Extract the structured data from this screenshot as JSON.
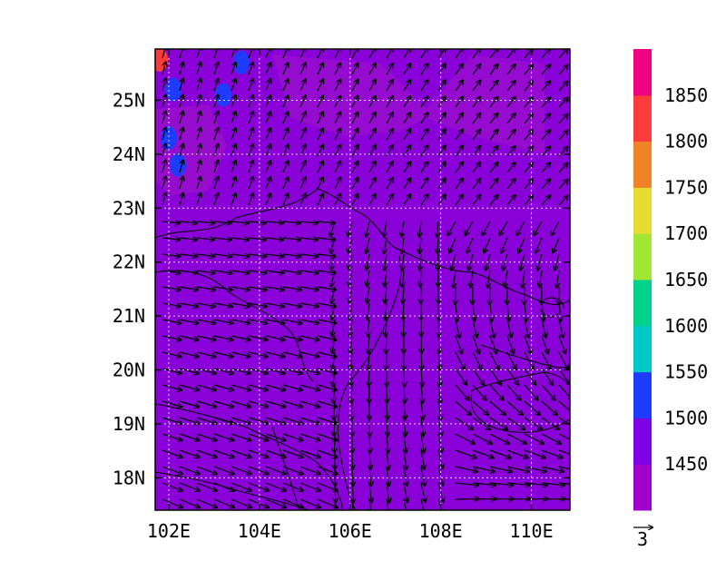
{
  "map": {
    "lon_range": [
      101.7,
      110.85
    ],
    "lat_range": [
      17.4,
      25.95
    ],
    "lon_ticks": [
      {
        "value": 102,
        "label": "102E"
      },
      {
        "value": 104,
        "label": "104E"
      },
      {
        "value": 106,
        "label": "106E"
      },
      {
        "value": 108,
        "label": "108E"
      },
      {
        "value": 110,
        "label": "110E"
      }
    ],
    "lat_ticks": [
      {
        "value": 18,
        "label": "18N"
      },
      {
        "value": 19,
        "label": "19N"
      },
      {
        "value": 20,
        "label": "20N"
      },
      {
        "value": 21,
        "label": "21N"
      },
      {
        "value": 22,
        "label": "22N"
      },
      {
        "value": 23,
        "label": "23N"
      },
      {
        "value": 24,
        "label": "24N"
      },
      {
        "value": 25,
        "label": "25N"
      }
    ],
    "grid": true,
    "background_level_color": "#8a00d8",
    "wind_vectors": "dense arrow field; westerly flow in the south-west, northerly/north-easterly over the Gulf of Tonkin curving into a cyclonic turn in the south-east, southerly in the north",
    "reference_vector_label": "3"
  },
  "colorbar": {
    "levels": [
      {
        "color": "#a000c8",
        "label": ""
      },
      {
        "color": "#8000e6",
        "label": "1450"
      },
      {
        "color": "#1e3cff",
        "label": "1500"
      },
      {
        "color": "#00c8c8",
        "label": "1550"
      },
      {
        "color": "#00d28c",
        "label": "1600"
      },
      {
        "color": "#a0e632",
        "label": "1650"
      },
      {
        "color": "#e6dc32",
        "label": "1700"
      },
      {
        "color": "#f08228",
        "label": "1750"
      },
      {
        "color": "#fa3c3c",
        "label": "1800"
      },
      {
        "color": "#f00082",
        "label": "1850"
      }
    ]
  },
  "high_patches": [
    {
      "lon": 102.1,
      "lat": 25.2,
      "color": "#1e3cff"
    },
    {
      "lon": 102.0,
      "lat": 24.3,
      "color": "#1e3cff"
    },
    {
      "lon": 102.2,
      "lat": 23.8,
      "color": "#1e3cff"
    },
    {
      "lon": 103.2,
      "lat": 25.1,
      "color": "#1e3cff"
    },
    {
      "lon": 103.6,
      "lat": 25.7,
      "color": "#1e3cff"
    },
    {
      "lon": 101.8,
      "lat": 25.75,
      "color": "#fa3c3c"
    }
  ]
}
